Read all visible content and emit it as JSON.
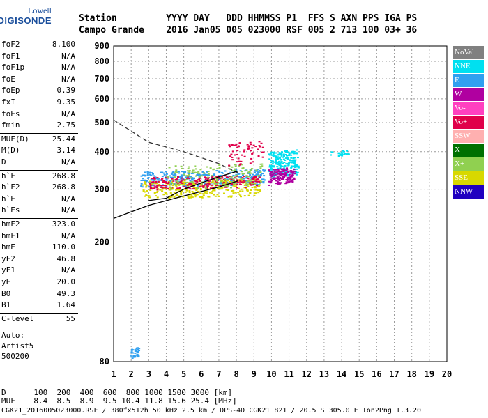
{
  "logo": {
    "line1": "Lowell",
    "line2": "DIGISONDE"
  },
  "header": {
    "row1": "Station         YYYY DAY   DDD HHMMSS P1  FFS S AXN PPS IGA PS",
    "row2": "Campo Grande    2016 Jan05 005 023000 RSF 005 2 713 100 03+ 36"
  },
  "params": [
    {
      "label": "foF2",
      "value": "8.100"
    },
    {
      "label": "foF1",
      "value": "N/A"
    },
    {
      "label": "foF1p",
      "value": "N/A"
    },
    {
      "label": "foE",
      "value": "N/A"
    },
    {
      "label": "foEp",
      "value": "0.39"
    },
    {
      "label": "fxI",
      "value": "9.35"
    },
    {
      "label": "foEs",
      "value": "N/A"
    },
    {
      "label": "fmin",
      "value": "2.75"
    },
    {
      "label": "MUF(D)",
      "value": "25.44"
    },
    {
      "label": "M(D)",
      "value": "3.14"
    },
    {
      "label": "D",
      "value": "N/A"
    },
    {
      "label": "h`F",
      "value": "268.8"
    },
    {
      "label": "h`F2",
      "value": "268.8"
    },
    {
      "label": "h`E",
      "value": "N/A"
    },
    {
      "label": "h`Es",
      "value": "N/A"
    },
    {
      "label": "hmF2",
      "value": "323.0"
    },
    {
      "label": "hmF1",
      "value": "N/A"
    },
    {
      "label": "hmE",
      "value": "110.0"
    },
    {
      "label": "yF2",
      "value": "46.8"
    },
    {
      "label": "yF1",
      "value": "N/A"
    },
    {
      "label": "yE",
      "value": "20.0"
    },
    {
      "label": "B0",
      "value": "49.3"
    },
    {
      "label": "B1",
      "value": "1.64"
    },
    {
      "label": "C-level",
      "value": "55"
    }
  ],
  "auto_text": [
    "Auto:",
    "Artist5",
    "500200"
  ],
  "legend": [
    {
      "label": "NoVal",
      "color": "#808080"
    },
    {
      "label": "NNE",
      "color": "#00e0f0"
    },
    {
      "label": "E",
      "color": "#30a0f0"
    },
    {
      "label": "W",
      "color": "#b000a0"
    },
    {
      "label": "Vo-",
      "color": "#ff40c0"
    },
    {
      "label": "Vo+",
      "color": "#e0004a"
    },
    {
      "label": "SSW",
      "color": "#ffb0b0"
    },
    {
      "label": "X-",
      "color": "#007000"
    },
    {
      "label": "X+",
      "color": "#90d050"
    },
    {
      "label": "SSE",
      "color": "#d8d800"
    },
    {
      "label": "NNW",
      "color": "#2000c0"
    }
  ],
  "bottom": {
    "d_row": "D      100  200  400  600  800 1000 1500 3000 [km]",
    "muf_row": "MUF    8.4  8.5  8.9  9.5 10.4 11.8 15.6 25.4 [MHz]"
  },
  "footer": "CGK21_2016005023000.RSF / 380fx512h 50 kHz 2.5 km / DPS-4D CGK21 821 / 20.5 S 305.0 E Ion2Png 1.3.20",
  "chart_data": {
    "type": "scatter",
    "title": "",
    "xlabel": "",
    "ylabel": "",
    "xlim": [
      1,
      20
    ],
    "ylim": [
      80,
      900
    ],
    "y_scale": "log",
    "x_ticks": [
      1,
      2,
      3,
      4,
      5,
      6,
      7,
      8,
      9,
      10,
      11,
      12,
      13,
      14,
      15,
      16,
      17,
      18,
      19,
      20
    ],
    "y_ticks": [
      80,
      200,
      300,
      400,
      500,
      600,
      700,
      800,
      900
    ],
    "grid": true,
    "legend_position": "right",
    "clusters": [
      {
        "series": "E",
        "color": "#30a0f0",
        "x": [
          2.5,
          9.6
        ],
        "y": [
          305,
          345
        ],
        "count": 340
      },
      {
        "series": "SSE",
        "color": "#d8d800",
        "x": [
          2.6,
          9.4
        ],
        "y": [
          280,
          320
        ],
        "count": 300
      },
      {
        "series": "Vo+",
        "color": "#e0004a",
        "x": [
          3.0,
          9.3
        ],
        "y": [
          300,
          330
        ],
        "count": 220
      },
      {
        "series": "X+",
        "color": "#90d050",
        "x": [
          4.0,
          9.5
        ],
        "y": [
          300,
          360
        ],
        "count": 140
      },
      {
        "series": "NNE",
        "color": "#00e0f0",
        "x": [
          9.8,
          11.5
        ],
        "y": [
          330,
          400
        ],
        "count": 200
      },
      {
        "series": "W",
        "color": "#b000a0",
        "x": [
          9.8,
          11.3
        ],
        "y": [
          310,
          350
        ],
        "count": 140
      },
      {
        "series": "E",
        "color": "#30a0f0",
        "x": [
          1.9,
          2.4
        ],
        "y": [
          82,
          88
        ],
        "count": 40
      },
      {
        "series": "NNE",
        "color": "#00e0f0",
        "x": [
          13.2,
          14.4
        ],
        "y": [
          385,
          400
        ],
        "count": 20
      },
      {
        "series": "Vo+",
        "color": "#e0004a",
        "x": [
          7.5,
          9.5
        ],
        "y": [
          360,
          430
        ],
        "count": 60
      }
    ],
    "lines": [
      {
        "name": "",
        "style": "dashed",
        "x": [
          1.0,
          3.0,
          5.0,
          7.0,
          8.1
        ],
        "y": [
          510,
          430,
          400,
          365,
          340
        ]
      },
      {
        "name": "",
        "style": "solid",
        "x": [
          1.0,
          3.0,
          5.0,
          7.0,
          8.1
        ],
        "y": [
          240,
          265,
          285,
          305,
          320
        ]
      },
      {
        "name": "",
        "style": "solid",
        "x": [
          3.0,
          4.0,
          5.0,
          6.0,
          7.0,
          8.1
        ],
        "y": [
          275,
          280,
          300,
          315,
          330,
          345
        ]
      }
    ]
  }
}
